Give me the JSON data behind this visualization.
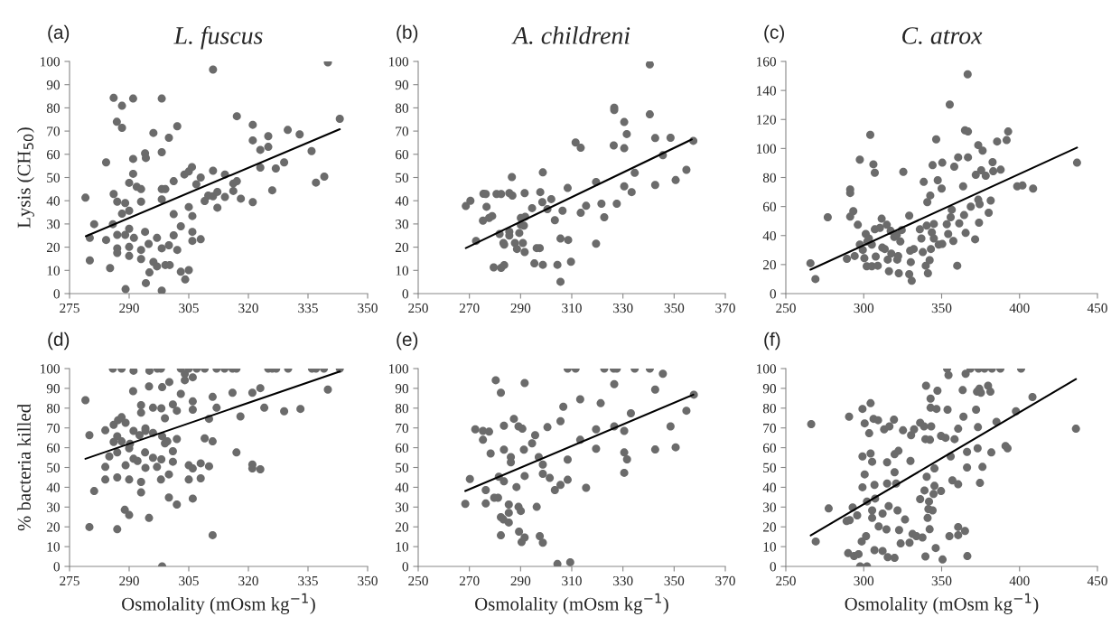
{
  "chart_data": [
    {
      "type": "scatter",
      "title": "L. fuscus",
      "annotations": [
        "(a)"
      ],
      "ylabel": "Lysis (CH$_{50}$)",
      "xlim": [
        275,
        350
      ],
      "xticks": [
        275,
        290,
        305,
        320,
        335,
        350
      ],
      "ylim": [
        0,
        100
      ],
      "yticks": [
        0,
        10,
        20,
        30,
        40,
        50,
        60,
        70,
        80,
        90,
        100
      ],
      "grid": false,
      "series": [
        {
          "type": "scatter",
          "marker": "circle",
          "color": "#6b6b6b",
          "x": [
            279.0,
            280.1,
            280.1,
            281.2,
            284.2,
            284.2,
            285.2,
            285.9,
            286.1,
            286.1,
            287.0,
            287.0,
            287.0,
            287.0,
            286.9,
            288.2,
            288.2,
            288.2,
            289.0,
            289.0,
            289.1,
            290.0,
            290.0,
            290.0,
            290.0,
            291.0,
            291.0,
            291.0,
            290.0,
            291.2,
            291.9,
            293.0,
            293.0,
            293.0,
            293.0,
            294.0,
            294.2,
            294.2,
            294.0,
            294.9,
            295.1,
            296.1,
            296.1,
            297.0,
            297.0,
            298.2,
            298.2,
            298.2,
            298.2,
            298.2,
            298.2,
            299.1,
            299.1,
            300.0,
            300.2,
            300.0,
            301.2,
            301.2,
            301.2,
            302.1,
            302.1,
            303.0,
            303.0,
            303.9,
            304.1,
            305.0,
            305.0,
            305.0,
            305.8,
            305.9,
            305.9,
            305.9,
            306.9,
            308.0,
            308.0,
            309.0,
            309.9,
            311.1,
            311.1,
            311.1,
            312.2,
            312.2,
            314.1,
            314.1,
            316.2,
            316.2,
            317.1,
            317.1,
            318.1,
            321.1,
            321.1,
            321.1,
            323.0,
            323.0,
            325.0,
            325.0,
            326.0,
            326.9,
            329.0,
            329.9,
            332.9,
            335.9,
            337.0,
            339.1,
            340.0,
            343.0
          ],
          "values": [
            41.3,
            24,
            14.3,
            29.9,
            56.5,
            23.1,
            11,
            29.9,
            84.3,
            42.9,
            39.6,
            25.3,
            19.5,
            17.5,
            74,
            71.4,
            80.9,
            34.4,
            39,
            25.3,
            1.9,
            35.7,
            27.9,
            20.1,
            16.2,
            84,
            58,
            51.6,
            47.7,
            24,
            46,
            45,
            39.6,
            18.8,
            14.9,
            60.4,
            58.4,
            4.5,
            26.6,
            21.4,
            9.1,
            69.2,
            13.6,
            24,
            11.7,
            84,
            60.9,
            45,
            40.6,
            19.5,
            1.3,
            45,
            12.3,
            67.1,
            12.3,
            20.8,
            48.4,
            34.2,
            25.1,
            72.1,
            18.8,
            29,
            9.4,
            51.3,
            6.1,
            52.6,
            37.3,
            10.1,
            54.5,
            33.4,
            26.6,
            22.7,
            47.1,
            50,
            23.4,
            39.9,
            42.2,
            96.5,
            52.9,
            41.9,
            37,
            43.8,
            51.3,
            41.6,
            47.4,
            44.2,
            76.4,
            48.4,
            40.9,
            72.7,
            66,
            39.4,
            61.9,
            54.3,
            67.8,
            63.2,
            44.5,
            53.9,
            56.5,
            70.5,
            68.6,
            61.4,
            47.8,
            50.4,
            99.6,
            75.3
          ]
        },
        {
          "type": "line",
          "marker": "none",
          "color": "#000000",
          "x": [
            279.1,
            343.0
          ],
          "values": [
            24.7,
            70.8
          ]
        }
      ]
    },
    {
      "type": "scatter",
      "title": "A. childreni",
      "annotations": [
        "(b)"
      ],
      "xlim": [
        250,
        370
      ],
      "xticks": [
        250,
        270,
        290,
        310,
        330,
        350,
        370
      ],
      "ylim": [
        0,
        100
      ],
      "yticks": [
        0,
        10,
        20,
        30,
        40,
        50,
        60,
        70,
        80,
        90,
        100
      ],
      "grid": false,
      "series": [
        {
          "type": "scatter",
          "marker": "circle",
          "color": "#6b6b6b",
          "x": [
            268.6,
            270.4,
            272.6,
            275.3,
            275.5,
            276.7,
            276.4,
            277.7,
            278.9,
            279.5,
            280.6,
            281.8,
            282.4,
            282.4,
            283.3,
            283.6,
            283.6,
            285.6,
            285.6,
            285.6,
            286.6,
            286.8,
            287.8,
            288.6,
            289.5,
            290.1,
            290.1,
            290.9,
            291.6,
            291.6,
            291.8,
            291.3,
            294.5,
            295.4,
            296.3,
            297.5,
            297.7,
            298.5,
            298.7,
            298.7,
            300.5,
            302.0,
            303.4,
            304.4,
            305.6,
            305.6,
            306.4,
            308.4,
            308.6,
            309.7,
            311.5,
            313.5,
            313.5,
            315.6,
            319.5,
            319.5,
            321.6,
            322.7,
            326.4,
            326.6,
            326.6,
            327.6,
            330.5,
            330.5,
            330.5,
            331.5,
            333.4,
            334.6,
            340.5,
            340.5,
            342.6,
            342.6,
            345.6,
            348.6,
            350.6,
            354.8,
            357.5
          ],
          "values": [
            37.7,
            40,
            22.7,
            31.4,
            43,
            37.4,
            42.9,
            32.6,
            33.4,
            11.3,
            42.9,
            25.7,
            42.9,
            11.1,
            21.8,
            12.3,
            21.1,
            26.7,
            25,
            43.3,
            50.2,
            42.2,
            21.8,
            19.2,
            26.1,
            29.6,
            32.6,
            21.8,
            43.3,
            17.9,
            33.1,
            29.3,
            36.8,
            13,
            19.6,
            19.6,
            43.7,
            39.4,
            52.2,
            12.4,
            36.4,
            40.7,
            31.6,
            12.4,
            5.1,
            23.7,
            35.7,
            45.5,
            23.1,
            13.7,
            65.1,
            62.8,
            34.8,
            37.8,
            48.1,
            21.5,
            38.7,
            32.9,
            63.8,
            80.1,
            79.1,
            38.7,
            73.9,
            62.6,
            46.2,
            68.7,
            43.7,
            52,
            98.7,
            77.2,
            67,
            46.8,
            59.6,
            67.1,
            48.9,
            53.3,
            65.8
          ]
        },
        {
          "type": "line",
          "marker": "none",
          "color": "#000000",
          "x": [
            268.6,
            356.9
          ],
          "values": [
            19.6,
            66.4
          ]
        }
      ]
    },
    {
      "type": "scatter",
      "title": "C. atrox",
      "annotations": [
        "(c)"
      ],
      "xlim": [
        250,
        450
      ],
      "xticks": [
        250,
        300,
        350,
        400,
        450
      ],
      "ylim": [
        0,
        160
      ],
      "yticks": [
        0,
        20,
        40,
        60,
        80,
        100,
        120,
        140,
        160
      ],
      "grid": false,
      "series": [
        {
          "type": "scatter",
          "marker": "circle",
          "color": "#6b6b6b",
          "x": [
            265.8,
            269.0,
            276.9,
            289.2,
            291.3,
            291.3,
            291.3,
            293.3,
            294.2,
            296.2,
            297.5,
            297.5,
            299.4,
            300.4,
            301.3,
            301.9,
            302.3,
            303.3,
            304.2,
            305.2,
            305.2,
            306.2,
            307.1,
            307.1,
            307.7,
            309.0,
            310.4,
            311.5,
            311.9,
            313.5,
            314.8,
            315.4,
            316.2,
            317.3,
            317.7,
            319.6,
            321.2,
            321.5,
            322.1,
            322.5,
            323.5,
            324.4,
            325.4,
            329.2,
            329.2,
            329.8,
            330.2,
            330.8,
            332.1,
            336.0,
            337.0,
            337.9,
            338.5,
            339.8,
            340.4,
            340.8,
            341.2,
            342.3,
            342.7,
            343.1,
            343.7,
            344.2,
            345.0,
            345.0,
            346.5,
            347.5,
            348.1,
            350.0,
            350.4,
            350.4,
            353.3,
            354.2,
            355.2,
            355.8,
            356.5,
            357.5,
            358.1,
            360.0,
            360.6,
            361.3,
            363.8,
            364.4,
            365.0,
            366.9,
            366.7,
            366.9,
            365.4,
            368.7,
            371.5,
            371.9,
            373.5,
            373.5,
            374.0,
            374.4,
            375.4,
            376.3,
            378.3,
            380.2,
            381.5,
            382.7,
            383.1,
            385.6,
            387.9,
            391.7,
            392.7,
            398.5,
            401.9,
            408.7,
            436.9
          ],
          "values": [
            20.9,
            10,
            52.6,
            24,
            53,
            71.8,
            69.3,
            56.8,
            25.9,
            47.4,
            92.3,
            33.8,
            30.1,
            24.4,
            41.1,
            18.8,
            35.9,
            38,
            109.4,
            33.8,
            18.8,
            89.1,
            83.3,
            44.3,
            25.5,
            19.2,
            45.3,
            51.6,
            31.7,
            30.7,
            47.4,
            23.4,
            15.4,
            43.2,
            27.6,
            39,
            40.5,
            23.4,
            25.9,
            14,
            35.9,
            43.8,
            83.9,
            53.7,
            13.4,
            29.6,
            21.7,
            8.8,
            30.7,
            44.3,
            38,
            28.6,
            77,
            19.2,
            46.8,
            63,
            14,
            23,
            67.6,
            30.7,
            42.2,
            88.5,
            38,
            48,
            106.3,
            78.1,
            33.8,
            72.4,
            90.2,
            34.2,
            47.8,
            41.1,
            130.3,
            52.6,
            57.8,
            36.3,
            87.5,
            19.2,
            93.9,
            48.4,
            73.9,
            54.1,
            112.5,
            111.7,
            151.1,
            93.9,
            41.8,
            59.9,
            37.4,
            81.8,
            102.3,
            64.7,
            48.9,
            61.6,
            85,
            98.5,
            81.2,
            55.7,
            64.1,
            90.6,
            84.3,
            104.8,
            85.4,
            105.8,
            111.7,
            73.9,
            74.5,
            72.4,
            90.2
          ]
        },
        {
          "type": "line",
          "marker": "none",
          "color": "#000000",
          "x": [
            265.8,
            436.9
          ],
          "values": [
            16.5,
            100.6
          ]
        }
      ]
    },
    {
      "type": "scatter",
      "annotations": [
        "(d)"
      ],
      "ylabel": "% bacteria killed",
      "xlabel": "Osmolality (mOsm kg$^{−1}$)",
      "xlim": [
        275,
        350
      ],
      "xticks": [
        275,
        290,
        305,
        320,
        335,
        350
      ],
      "ylim": [
        0,
        100
      ],
      "yticks": [
        0,
        10,
        20,
        30,
        40,
        50,
        60,
        70,
        80,
        90,
        100
      ],
      "grid": false,
      "series": [
        {
          "type": "scatter",
          "marker": "circle",
          "color": "#6b6b6b",
          "x": [
            279.0,
            280.0,
            280.0,
            281.2,
            284.0,
            284.0,
            284.0,
            285.0,
            285.9,
            286.1,
            286.1,
            287.0,
            287.0,
            287.0,
            287.0,
            287.2,
            288.1,
            288.1,
            288.1,
            288.9,
            289.1,
            289.1,
            290.0,
            290.0,
            290.0,
            290.2,
            291.0,
            291.1,
            291.1,
            291.1,
            292.1,
            292.6,
            293.0,
            293.0,
            293.0,
            293.0,
            294.0,
            294.1,
            294.1,
            294.1,
            295.0,
            295.0,
            295.1,
            296.0,
            296.0,
            296.0,
            297.0,
            297.1,
            298.0,
            298.0,
            298.1,
            298.1,
            298.3,
            298.3,
            298.3,
            299.0,
            299.0,
            299.6,
            300.0,
            300.0,
            300.1,
            301.0,
            301.0,
            301.0,
            302.0,
            302.0,
            302.0,
            303.0,
            303.0,
            304.0,
            304.0,
            305.0,
            305.0,
            305.0,
            306.0,
            306.0,
            306.0,
            306.0,
            306.0,
            307.0,
            308.0,
            308.0,
            309.0,
            309.0,
            310.1,
            310.1,
            311.0,
            311.0,
            311.0,
            312.0,
            312.0,
            314.0,
            316.0,
            316.0,
            317.0,
            317.0,
            318.0,
            321.0,
            321.0,
            321.0,
            323.0,
            323.0,
            324.0,
            325.0,
            326.0,
            327.0,
            329.0,
            330.0,
            333.1,
            336.0,
            337.0,
            339.0,
            340.0,
            343.0
          ],
          "values": [
            84,
            66.3,
            19.9,
            38.1,
            68.8,
            50.3,
            43.9,
            55.6,
            100,
            71.6,
            62.9,
            45,
            65.8,
            57.6,
            18.8,
            73.9,
            100,
            75.4,
            63.2,
            28.6,
            51.1,
            72.6,
            43.9,
            59.7,
            26,
            62,
            88.6,
            98.9,
            68.5,
            54.4,
            53.3,
            66.3,
            42.7,
            37.4,
            81.5,
            77.7,
            57.6,
            69.8,
            49.8,
            68.5,
            91,
            24.5,
            98.9,
            80.2,
            54.9,
            67.5,
            50.3,
            100,
            100,
            43.9,
            79.9,
            54.1,
            65.8,
            90.6,
            0,
            74.9,
            62.2,
            63.2,
            34.8,
            46.5,
            93.2,
            81.9,
            58.2,
            52.9,
            64.4,
            78.7,
            31.3,
            87.2,
            100,
            94.1,
            97.4,
            100,
            43.9,
            51.1,
            95.6,
            83.4,
            79.2,
            49.5,
            34.3,
            100,
            44.5,
            52.1,
            100,
            64.7,
            74.6,
            50.6,
            85.7,
            63.2,
            15.8,
            80.2,
            100,
            100,
            100,
            87.8,
            57.6,
            100,
            75.8,
            87.8,
            51.5,
            49.5,
            90.1,
            49.1,
            80.2,
            100,
            100,
            100,
            78.4,
            100,
            79.6,
            100,
            100,
            100,
            89.4,
            100
          ]
        },
        {
          "type": "line",
          "marker": "none",
          "color": "#000000",
          "x": [
            279.0,
            343.0
          ],
          "values": [
            54.4,
            98.5
          ]
        }
      ]
    },
    {
      "type": "scatter",
      "annotations": [
        "(e)"
      ],
      "xlabel": "Osmolality (mOsm kg$^{−1}$)",
      "xlim": [
        250,
        370
      ],
      "xticks": [
        250,
        270,
        290,
        310,
        330,
        350,
        370
      ],
      "ylim": [
        0,
        100
      ],
      "yticks": [
        0,
        10,
        20,
        30,
        40,
        50,
        60,
        70,
        80,
        90,
        100
      ],
      "grid": false,
      "series": [
        {
          "type": "scatter",
          "marker": "circle",
          "color": "#6b6b6b",
          "x": [
            268.4,
            270.2,
            272.3,
            275.3,
            275.3,
            276.4,
            276.4,
            277.7,
            278.3,
            279.7,
            280.3,
            281.2,
            281.5,
            282.3,
            282.3,
            282.3,
            283.3,
            283.5,
            283.5,
            283.5,
            285.4,
            285.4,
            285.4,
            286.2,
            286.2,
            287.4,
            288.4,
            289.2,
            289.2,
            289.4,
            290.1,
            290.4,
            290.7,
            291.3,
            291.6,
            291.6,
            291.6,
            294.5,
            295.7,
            296.3,
            297.1,
            297.5,
            298.7,
            298.7,
            298.7,
            300.5,
            301.4,
            303.4,
            304.4,
            305.6,
            305.6,
            306.7,
            308.4,
            308.4,
            308.4,
            309.4,
            311.5,
            313.3,
            313.3,
            315.6,
            319.5,
            319.5,
            321.3,
            322.7,
            326.4,
            326.6,
            326.6,
            327.6,
            330.5,
            330.5,
            330.5,
            331.6,
            333.1,
            334.6,
            340.5,
            342.6,
            342.6,
            345.6,
            348.6,
            350.6,
            354.8,
            357.7
          ],
          "values": [
            31.6,
            44.2,
            69.3,
            68.5,
            64,
            38.6,
            31.8,
            68.1,
            57.1,
            34.7,
            94.1,
            34.7,
            45.3,
            87.8,
            24.9,
            15.7,
            23.7,
            71.1,
            59,
            43,
            22.2,
            27.1,
            31.3,
            55.3,
            52.6,
            74.6,
            40.1,
            70.8,
            30.1,
            17.6,
            28,
            12.3,
            69.6,
            59,
            92.7,
            45.7,
            14.6,
            62.2,
            66.3,
            30.1,
            55.3,
            15.3,
            12,
            51.5,
            46.8,
            70.4,
            44.7,
            38.6,
            1.2,
            41.2,
            73.4,
            80.7,
            54,
            43.8,
            100,
            2.1,
            100,
            84.5,
            64,
            39.7,
            69.3,
            59.5,
            82.5,
            100,
            100,
            92.1,
            70.8,
            100,
            68.5,
            57.6,
            47.3,
            54.1,
            77.4,
            100,
            100,
            89.4,
            59.1,
            97.4,
            70.8,
            60.2,
            78.7,
            86.8
          ]
        },
        {
          "type": "line",
          "marker": "none",
          "color": "#000000",
          "x": [
            268.4,
            357.5
          ],
          "values": [
            38.1,
            86.8
          ]
        }
      ]
    },
    {
      "type": "scatter",
      "annotations": [
        "(f)"
      ],
      "xlabel": "Osmolality (mOsm kg$^{−1}$)",
      "xlim": [
        250,
        450
      ],
      "xticks": [
        250,
        300,
        350,
        400,
        450
      ],
      "ylim": [
        0,
        100
      ],
      "yticks": [
        0,
        10,
        20,
        30,
        40,
        50,
        60,
        70,
        80,
        90,
        100
      ],
      "grid": false,
      "series": [
        {
          "type": "scatter",
          "marker": "circle",
          "color": "#6b6b6b",
          "x": [
            266.3,
            269.2,
            277.5,
            290.6,
            289.0,
            291.0,
            290.0,
            292.9,
            293.8,
            295.8,
            296.7,
            297.7,
            299.2,
            299.2,
            299.2,
            298.7,
            300.6,
            300.6,
            301.5,
            302.1,
            302.1,
            303.5,
            304.4,
            304.4,
            305.4,
            305.4,
            305.4,
            306.3,
            306.9,
            306.9,
            307.3,
            309.2,
            309.6,
            312.1,
            312.1,
            313.1,
            315.0,
            314.6,
            315.0,
            315.4,
            316.0,
            316.5,
            319.4,
            319.8,
            319.8,
            319.8,
            320.8,
            321.7,
            322.3,
            322.7,
            323.7,
            325.2,
            326.5,
            329.4,
            330.0,
            330.4,
            331.3,
            332.3,
            333.8,
            336.2,
            336.2,
            337.7,
            338.7,
            339.0,
            339.6,
            339.6,
            340.0,
            340.4,
            341.0,
            341.5,
            341.9,
            342.3,
            342.5,
            342.9,
            342.9,
            343.3,
            344.2,
            344.8,
            345.4,
            345.4,
            346.2,
            346.7,
            347.3,
            349.6,
            349.6,
            350.6,
            352.5,
            353.5,
            353.8,
            354.4,
            355.0,
            355.8,
            356.9,
            358.3,
            360.6,
            360.6,
            360.6,
            360.6,
            363.5,
            364.0,
            365.0,
            365.4,
            366.3,
            366.3,
            366.5,
            368.5,
            372.1,
            372.7,
            373.1,
            373.3,
            373.7,
            374.2,
            374.6,
            375.2,
            376.2,
            377.5,
            379.8,
            381.3,
            381.9,
            382.3,
            385.2,
            387.7,
            391.0,
            392.3,
            397.7,
            401.0,
            408.3,
            436.2
          ],
          "values": [
            71.9,
            12.6,
            29.3,
            75.7,
            22.9,
            23.4,
            6.7,
            29.8,
            5.2,
            25.8,
            6.2,
            0,
            79.6,
            55.6,
            40,
            12.6,
            72.3,
            46.5,
            15.3,
            32.8,
            0,
            67.3,
            82.5,
            57.1,
            28.3,
            24.5,
            52.9,
            74.6,
            41.2,
            8.2,
            34.3,
            73.9,
            20.2,
            26.7,
            7.8,
            69.3,
            52.6,
            18.7,
            41.9,
            4.7,
            30.5,
            70.8,
            74.2,
            56.7,
            47.6,
            4.3,
            41.9,
            28.3,
            58.4,
            18.4,
            11.6,
            68.8,
            23.7,
            12,
            53.3,
            66.3,
            16.4,
            69.3,
            15.3,
            34,
            72.6,
            14.6,
            70.8,
            38.4,
            64.3,
            5,
            91.3,
            45.3,
            24.5,
            29,
            32.8,
            18.8,
            64,
            84.8,
            80.2,
            70.8,
            28.3,
            36.6,
            40.7,
            49.5,
            9.3,
            79.6,
            88.8,
            38.1,
            66,
            3.5,
            65,
            100,
            79.2,
            96.7,
            15.3,
            55.6,
            43.5,
            64.3,
            69.6,
            41.5,
            15.8,
            19.9,
            89.1,
            75.7,
            17.9,
            97.4,
            57.9,
            50,
            5.2,
            100,
            79.2,
            88.3,
            59.7,
            70.4,
            100,
            89.8,
            42.2,
            87.8,
            50.3,
            100,
            91.3,
            88.3,
            57.6,
            100,
            73.1,
            100,
            60.9,
            59.7,
            78.4,
            100,
            85.6,
            69.6
          ]
        },
        {
          "type": "line",
          "marker": "none",
          "color": "#000000",
          "x": [
            266.0,
            436.2
          ],
          "values": [
            15.7,
            94.7
          ]
        }
      ]
    }
  ]
}
